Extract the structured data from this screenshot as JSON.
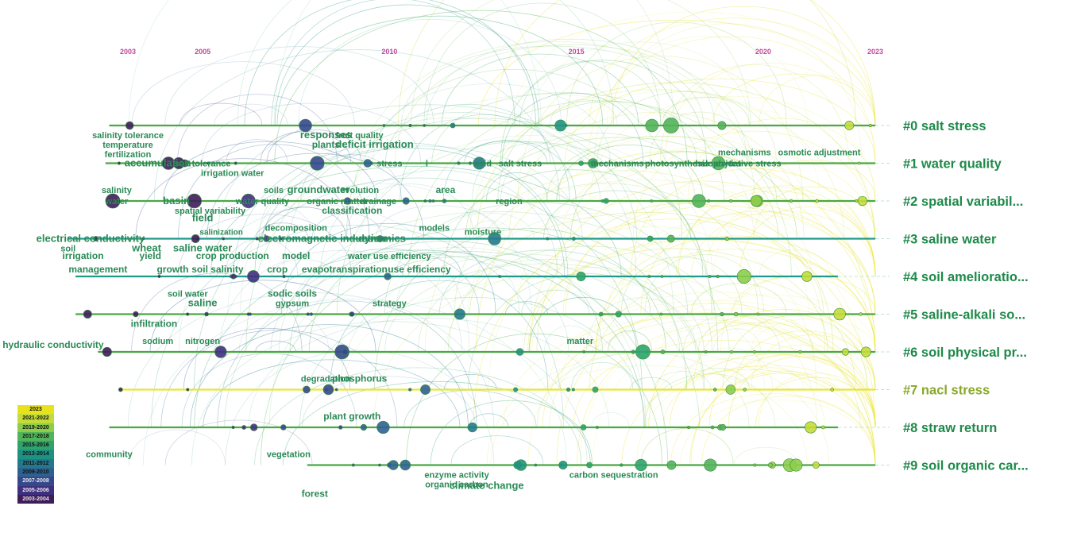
{
  "years": [
    {
      "label": "2003",
      "year": 2003
    },
    {
      "label": "2005",
      "year": 2005
    },
    {
      "label": "2010",
      "year": 2010
    },
    {
      "label": "2015",
      "year": 2015
    },
    {
      "label": "2020",
      "year": 2020
    },
    {
      "label": "2023",
      "year": 2023
    }
  ],
  "clusters": [
    {
      "id": 0,
      "label": "#0 salt stress",
      "color": "#1e8a4a"
    },
    {
      "id": 1,
      "label": "#1 water quality",
      "color": "#1e8a4a"
    },
    {
      "id": 2,
      "label": "#2 spatial variabil...",
      "color": "#1e8a4a"
    },
    {
      "id": 3,
      "label": "#3 saline water",
      "color": "#1e8a4a"
    },
    {
      "id": 4,
      "label": "#4 soil amelioratio...",
      "color": "#1e8a4a"
    },
    {
      "id": 5,
      "label": "#5 saline-alkali so...",
      "color": "#1e8a4a"
    },
    {
      "id": 6,
      "label": "#6 soil physical pr...",
      "color": "#1e8a4a"
    },
    {
      "id": 7,
      "label": "#7 nacl stress",
      "color": "#8aa82a"
    },
    {
      "id": 8,
      "label": "#8 straw return",
      "color": "#1e8a4a"
    },
    {
      "id": 9,
      "label": "#9 soil organic car...",
      "color": "#1e8a4a"
    }
  ],
  "keywords": [
    {
      "text": "salinity tolerance",
      "lane": 0,
      "year": 2003.0,
      "pos": "below1",
      "size": 11
    },
    {
      "text": "temperature",
      "lane": 0,
      "year": 2003.0,
      "pos": "below2",
      "size": 11
    },
    {
      "text": "fertilization",
      "lane": 0,
      "year": 2003.0,
      "pos": "below3",
      "size": 11
    },
    {
      "text": "responses",
      "lane": 0,
      "year": 2008.3,
      "pos": "below1",
      "size": 13
    },
    {
      "text": "plants",
      "lane": 0,
      "year": 2008.3,
      "pos": "below2",
      "size": 12
    },
    {
      "text": "fruit quality",
      "lane": 0,
      "year": 2009.2,
      "pos": "below1",
      "size": 11
    },
    {
      "text": "deficit irrigation",
      "lane": 0,
      "year": 2009.6,
      "pos": "below2",
      "size": 13
    },
    {
      "text": "accumulation",
      "lane": 1,
      "year": 2003.8,
      "pos": "on",
      "size": 13
    },
    {
      "text": "salt tolerance",
      "lane": 1,
      "year": 2005.0,
      "pos": "on",
      "size": 11
    },
    {
      "text": "stress",
      "lane": 1,
      "year": 2010.0,
      "pos": "on",
      "size": 11
    },
    {
      "text": "irrigation water",
      "lane": 1,
      "year": 2005.8,
      "pos": "below1",
      "size": 11
    },
    {
      "text": "l",
      "lane": 1,
      "year": 2011.0,
      "pos": "on",
      "size": 11
    },
    {
      "text": "acid",
      "lane": 1,
      "year": 2012.5,
      "pos": "on",
      "size": 11
    },
    {
      "text": "salt stress",
      "lane": 1,
      "year": 2013.5,
      "pos": "on",
      "size": 11
    },
    {
      "text": "mechanisms",
      "lane": 1,
      "year": 2016.1,
      "pos": "on",
      "size": 11
    },
    {
      "text": "photosynthesis",
      "lane": 1,
      "year": 2017.7,
      "pos": "on",
      "size": 11
    },
    {
      "text": "halophytes",
      "lane": 1,
      "year": 2018.8,
      "pos": "on",
      "size": 11
    },
    {
      "text": "mechanisms",
      "lane": 1,
      "year": 2019.5,
      "pos": "above",
      "size": 11
    },
    {
      "text": "oxidative stress",
      "lane": 1,
      "year": 2019.6,
      "pos": "on",
      "size": 11
    },
    {
      "text": "osmotic adjustment",
      "lane": 1,
      "year": 2021.5,
      "pos": "above",
      "size": 11
    },
    {
      "text": "salinity",
      "lane": 2,
      "year": 2002.7,
      "pos": "above",
      "size": 11
    },
    {
      "text": "water",
      "lane": 2,
      "year": 2002.7,
      "pos": "on",
      "size": 11
    },
    {
      "text": "basin",
      "lane": 2,
      "year": 2004.3,
      "pos": "on",
      "size": 13
    },
    {
      "text": "soils",
      "lane": 2,
      "year": 2006.9,
      "pos": "above",
      "size": 11
    },
    {
      "text": "water quality",
      "lane": 2,
      "year": 2006.6,
      "pos": "on",
      "size": 11
    },
    {
      "text": "groundwater",
      "lane": 2,
      "year": 2008.1,
      "pos": "above",
      "size": 13
    },
    {
      "text": "organic matter",
      "lane": 2,
      "year": 2008.6,
      "pos": "on",
      "size": 11
    },
    {
      "text": "evolution",
      "lane": 2,
      "year": 2009.2,
      "pos": "above",
      "size": 11
    },
    {
      "text": "drainage",
      "lane": 2,
      "year": 2009.7,
      "pos": "on",
      "size": 11
    },
    {
      "text": "area",
      "lane": 2,
      "year": 2011.5,
      "pos": "above",
      "size": 12
    },
    {
      "text": "region",
      "lane": 2,
      "year": 2013.2,
      "pos": "on",
      "size": 11
    },
    {
      "text": "spatial variability",
      "lane": 2,
      "year": 2005.2,
      "pos": "below1",
      "size": 11
    },
    {
      "text": "classification",
      "lane": 2,
      "year": 2009.0,
      "pos": "below1",
      "size": 12
    },
    {
      "text": "decomposition",
      "lane": 3,
      "year": 2007.5,
      "pos": "above",
      "size": 11
    },
    {
      "text": "models",
      "lane": 3,
      "year": 2011.2,
      "pos": "above",
      "size": 11
    },
    {
      "text": "moisture",
      "lane": 3,
      "year": 2012.5,
      "pos": "on-up",
      "size": 11
    },
    {
      "text": "electrical conductivity",
      "lane": 3,
      "year": 2002.0,
      "pos": "on",
      "size": 13
    },
    {
      "text": "salinization",
      "lane": 3,
      "year": 2005.5,
      "pos": "on-up",
      "size": 10
    },
    {
      "text": "field",
      "lane": 3,
      "year": 2005.0,
      "pos": "above2",
      "size": 13
    },
    {
      "text": "electromagnetic induction",
      "lane": 3,
      "year": 2008.2,
      "pos": "on",
      "size": 13
    },
    {
      "text": "dynamics",
      "lane": 3,
      "year": 2009.8,
      "pos": "on",
      "size": 13
    },
    {
      "text": "soil",
      "lane": 3,
      "year": 2001.4,
      "pos": "below1",
      "size": 11
    },
    {
      "text": "wheat",
      "lane": 3,
      "year": 2003.5,
      "pos": "below1",
      "size": 13
    },
    {
      "text": "saline water",
      "lane": 3,
      "year": 2005.0,
      "pos": "below1",
      "size": 13
    },
    {
      "text": "irrigation",
      "lane": 4,
      "year": 2001.8,
      "pos": "above2",
      "size": 12
    },
    {
      "text": "yield",
      "lane": 4,
      "year": 2003.6,
      "pos": "above2",
      "size": 12
    },
    {
      "text": "crop production",
      "lane": 4,
      "year": 2005.8,
      "pos": "above2",
      "size": 12
    },
    {
      "text": "model",
      "lane": 4,
      "year": 2007.5,
      "pos": "above2",
      "size": 12
    },
    {
      "text": "water use efficiency",
      "lane": 4,
      "year": 2010.0,
      "pos": "above2",
      "size": 11
    },
    {
      "text": "management",
      "lane": 4,
      "year": 2002.2,
      "pos": "on-up",
      "size": 12
    },
    {
      "text": "growth",
      "lane": 4,
      "year": 2004.2,
      "pos": "on-up",
      "size": 12
    },
    {
      "text": "soil salinity",
      "lane": 4,
      "year": 2005.4,
      "pos": "on-up",
      "size": 12
    },
    {
      "text": "crop",
      "lane": 4,
      "year": 2007.0,
      "pos": "on-up",
      "size": 12
    },
    {
      "text": "evapotranspiration",
      "lane": 4,
      "year": 2008.8,
      "pos": "on-up",
      "size": 12
    },
    {
      "text": "use efficiency",
      "lane": 4,
      "year": 2010.8,
      "pos": "on-up",
      "size": 12
    },
    {
      "text": "soil water",
      "lane": 5,
      "year": 2004.6,
      "pos": "above2",
      "size": 11
    },
    {
      "text": "saline",
      "lane": 5,
      "year": 2005.0,
      "pos": "above",
      "size": 13
    },
    {
      "text": "sodic soils",
      "lane": 5,
      "year": 2007.4,
      "pos": "above2",
      "size": 12
    },
    {
      "text": "gypsum",
      "lane": 5,
      "year": 2007.4,
      "pos": "above",
      "size": 11
    },
    {
      "text": "strategy",
      "lane": 5,
      "year": 2010.0,
      "pos": "above",
      "size": 11
    },
    {
      "text": "infiltration",
      "lane": 5,
      "year": 2003.7,
      "pos": "below1",
      "size": 12
    },
    {
      "text": "hydraulic conductivity",
      "lane": 6,
      "year": 2001.0,
      "pos": "on-up",
      "size": 12
    },
    {
      "text": "sodium",
      "lane": 6,
      "year": 2003.8,
      "pos": "above",
      "size": 11
    },
    {
      "text": "nitrogen",
      "lane": 6,
      "year": 2005.0,
      "pos": "above",
      "size": 11
    },
    {
      "text": "matter",
      "lane": 6,
      "year": 2015.1,
      "pos": "above",
      "size": 11
    },
    {
      "text": "degradation",
      "lane": 7,
      "year": 2008.3,
      "pos": "above",
      "size": 11
    },
    {
      "text": "phosphorus",
      "lane": 7,
      "year": 2009.2,
      "pos": "above",
      "size": 12
    },
    {
      "text": "plant growth",
      "lane": 8,
      "year": 2009.0,
      "pos": "above",
      "size": 12
    },
    {
      "text": "community",
      "lane": 9,
      "year": 2002.5,
      "pos": "above",
      "size": 11
    },
    {
      "text": "vegetation",
      "lane": 9,
      "year": 2007.3,
      "pos": "above",
      "size": 11
    },
    {
      "text": "forest",
      "lane": 9,
      "year": 2008.0,
      "pos": "below3",
      "size": 12
    },
    {
      "text": "enzyme activity",
      "lane": 9,
      "year": 2011.8,
      "pos": "below1",
      "size": 11
    },
    {
      "text": "organic carbon",
      "lane": 9,
      "year": 2011.8,
      "pos": "below2",
      "size": 11
    },
    {
      "text": "climate change",
      "lane": 9,
      "year": 2012.6,
      "pos": "below2b",
      "size": 13
    },
    {
      "text": "carbon sequestration",
      "lane": 9,
      "year": 2016.0,
      "pos": "below1",
      "size": 11
    }
  ],
  "legend": [
    {
      "label": "2023",
      "color": "#e8e21c"
    },
    {
      "label": "2021-2022",
      "color": "#c4dc3a"
    },
    {
      "label": "2019-2020",
      "color": "#8ccd4a"
    },
    {
      "label": "2017-2018",
      "color": "#52b45a"
    },
    {
      "label": "2015-2016",
      "color": "#2ea36c"
    },
    {
      "label": "2013-2014",
      "color": "#1e9282"
    },
    {
      "label": "2011-2012",
      "color": "#23798c"
    },
    {
      "label": "2009-2010",
      "color": "#2d6290"
    },
    {
      "label": "2007-2008",
      "color": "#34488c"
    },
    {
      "label": "2005-2006",
      "color": "#3f2f80"
    },
    {
      "label": "2003-2004",
      "color": "#3e1d5a"
    }
  ]
}
